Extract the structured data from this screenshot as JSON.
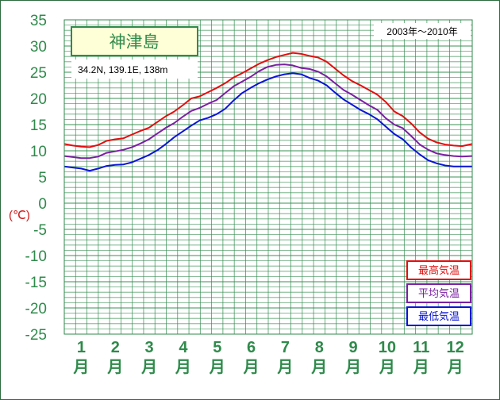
{
  "chart_data": {
    "type": "line",
    "title": "神津島",
    "subtitle": "34.2N, 139.1E, 138m",
    "period": "2003年〜2010年",
    "ylabel": "(℃)",
    "ylim": [
      -25,
      35
    ],
    "yticks": [
      35,
      30,
      25,
      20,
      15,
      10,
      5,
      0,
      -5,
      -10,
      -15,
      -20,
      -25
    ],
    "xlim": [
      0.5,
      12.55
    ],
    "categories": [
      "1",
      "2",
      "3",
      "4",
      "5",
      "6",
      "7",
      "8",
      "9",
      "10",
      "11",
      "12"
    ],
    "month_char": "月",
    "grid": true,
    "legend_position": "bottom-right",
    "x": [
      0.5,
      0.75,
      1.0,
      1.25,
      1.5,
      1.75,
      2.0,
      2.25,
      2.5,
      2.75,
      3.0,
      3.25,
      3.5,
      3.75,
      4.0,
      4.25,
      4.5,
      4.75,
      5.0,
      5.25,
      5.5,
      5.75,
      6.0,
      6.25,
      6.5,
      6.75,
      7.0,
      7.25,
      7.5,
      7.75,
      8.0,
      8.25,
      8.5,
      8.75,
      9.0,
      9.25,
      9.5,
      9.75,
      10.0,
      10.25,
      10.5,
      10.75,
      11.0,
      11.25,
      11.5,
      11.75,
      12.0,
      12.25,
      12.55
    ],
    "series": [
      {
        "name": "最高気温",
        "color": "#e01010",
        "values": [
          11.3,
          11.0,
          10.8,
          10.7,
          11.1,
          11.9,
          12.2,
          12.4,
          13.1,
          13.8,
          14.4,
          15.5,
          16.6,
          17.5,
          18.7,
          20.0,
          20.4,
          21.2,
          22.0,
          22.9,
          24.0,
          24.8,
          25.7,
          26.6,
          27.3,
          27.9,
          28.3,
          28.7,
          28.5,
          28.1,
          27.8,
          27.0,
          25.7,
          24.4,
          23.3,
          22.5,
          21.6,
          20.7,
          19.3,
          17.5,
          16.6,
          15.2,
          13.5,
          12.3,
          11.6,
          11.2,
          11.0,
          10.9,
          11.3
        ]
      },
      {
        "name": "平均気温",
        "color": "#7b1fa2",
        "values": [
          9.0,
          8.8,
          8.6,
          8.6,
          8.9,
          9.6,
          9.9,
          10.2,
          10.7,
          11.4,
          12.2,
          13.3,
          14.4,
          15.3,
          16.5,
          17.6,
          18.2,
          19.0,
          19.7,
          21.0,
          22.3,
          23.2,
          24.1,
          25.2,
          26.0,
          26.4,
          26.5,
          26.3,
          25.8,
          25.6,
          25.1,
          24.2,
          22.9,
          21.6,
          20.7,
          19.7,
          18.7,
          17.8,
          16.2,
          15.0,
          14.3,
          12.8,
          11.2,
          10.2,
          9.5,
          9.2,
          9.0,
          8.9,
          9.0
        ]
      },
      {
        "name": "最低気温",
        "color": "#0a14d6",
        "values": [
          7.0,
          6.8,
          6.6,
          6.2,
          6.6,
          7.1,
          7.3,
          7.4,
          7.8,
          8.5,
          9.2,
          10.1,
          11.3,
          12.6,
          13.7,
          14.8,
          15.8,
          16.3,
          17.0,
          18.0,
          19.6,
          21.0,
          22.0,
          22.9,
          23.6,
          24.2,
          24.6,
          24.8,
          24.6,
          23.9,
          23.4,
          22.5,
          21.1,
          19.8,
          18.8,
          17.8,
          17.0,
          16.0,
          14.6,
          13.2,
          12.2,
          10.6,
          9.3,
          8.2,
          7.6,
          7.2,
          7.0,
          7.0,
          7.0
        ]
      }
    ]
  }
}
